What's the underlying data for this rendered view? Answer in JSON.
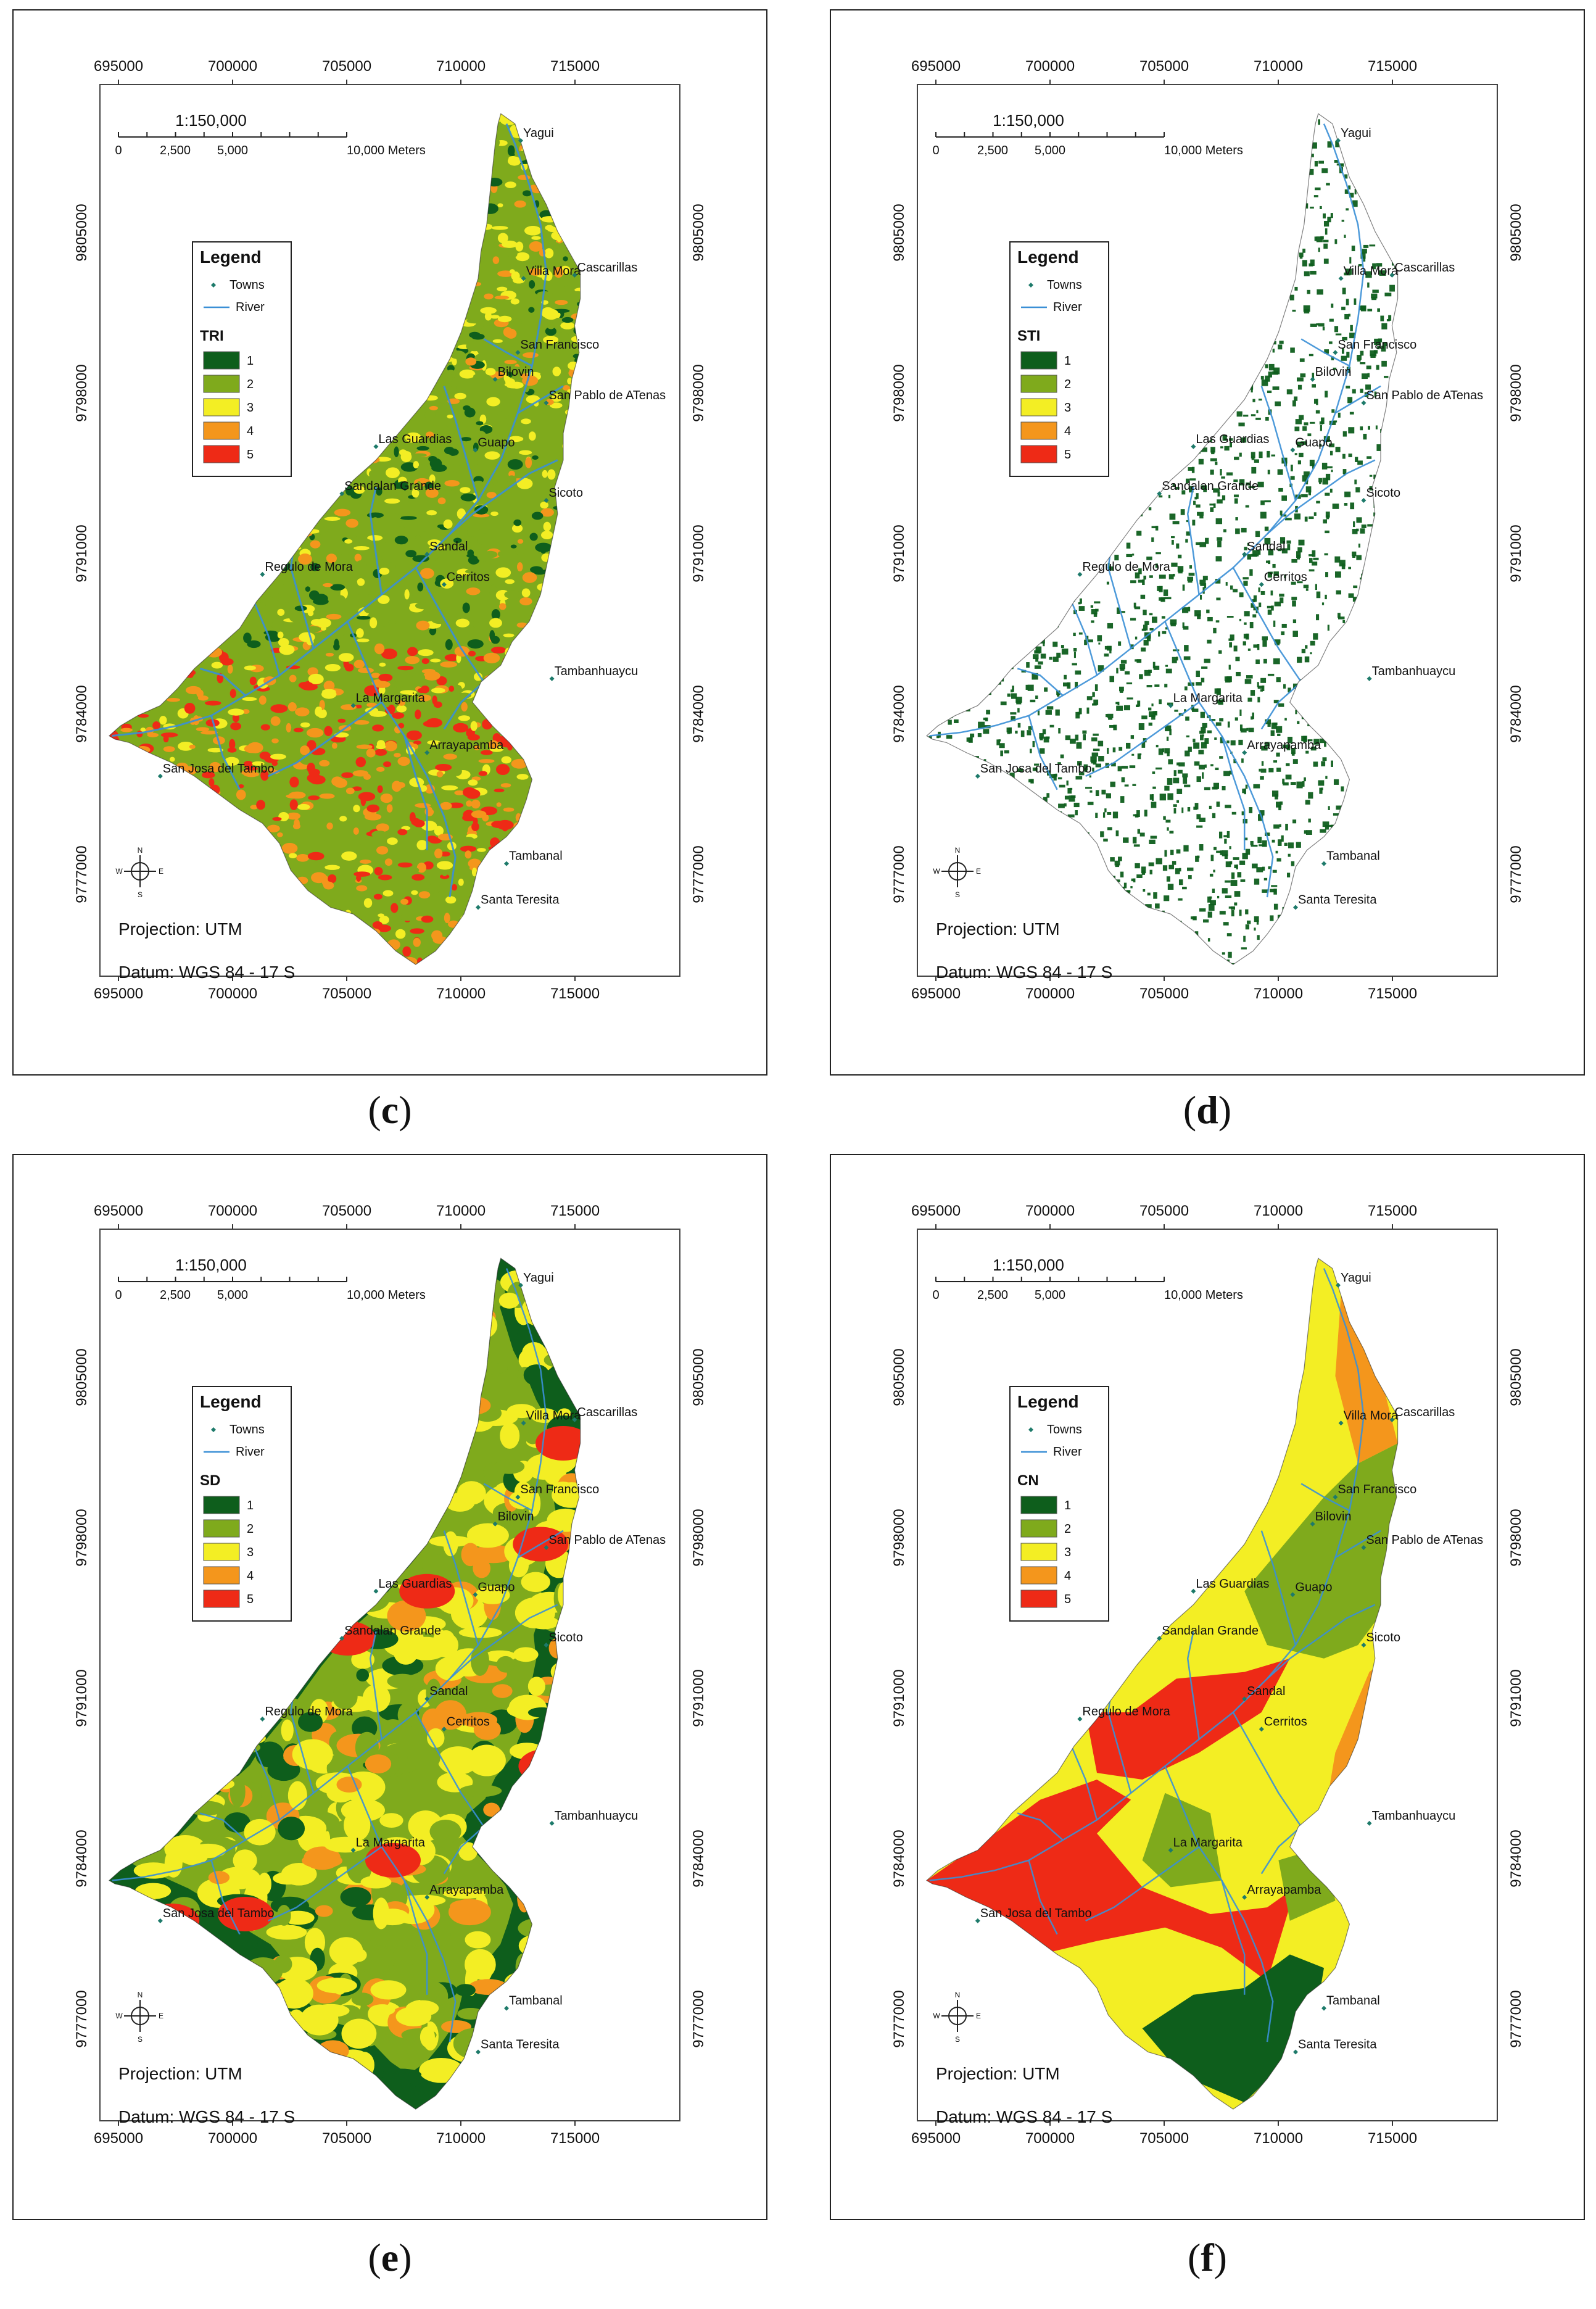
{
  "panels": [
    {
      "id": "c",
      "caption_letter": "c",
      "legend_layer": "TRI",
      "palette": [
        "#0e5e1c",
        "#7faa1c",
        "#f3ee24",
        "#f4961c",
        "#ee2a16"
      ],
      "style": "tri"
    },
    {
      "id": "d",
      "caption_letter": "d",
      "legend_layer": "STI",
      "palette": [
        "#0e5e1c",
        "#7faa1c",
        "#f3ee24",
        "#f4961c",
        "#ee2a16"
      ],
      "style": "sti"
    },
    {
      "id": "e",
      "caption_letter": "e",
      "legend_layer": "SD",
      "palette": [
        "#0e5e1c",
        "#7faa1c",
        "#f3ee24",
        "#f4961c",
        "#ee2a16"
      ],
      "style": "sd"
    },
    {
      "id": "f",
      "caption_letter": "f",
      "legend_layer": "CN",
      "palette": [
        "#0e5e1c",
        "#7faa1c",
        "#f3ee24",
        "#f4961c",
        "#ee2a16"
      ],
      "style": "cn"
    }
  ],
  "map_common": {
    "x_ticks": [
      "695000",
      "700000",
      "705000",
      "710000",
      "715000"
    ],
    "y_ticks": [
      "9805000",
      "9798000",
      "9791000",
      "9784000",
      "9777000"
    ],
    "scale_ratio": "1:150,000",
    "scale_labels": [
      "0",
      "2,500",
      "5,000",
      "10,000 Meters"
    ],
    "legend_title": "Legend",
    "legend_towns": "Towns",
    "legend_river": "River",
    "class_labels": [
      "1",
      "2",
      "3",
      "4",
      "5"
    ],
    "projection": "Projection: UTM",
    "datum": "Datum: WGS 84 - 17 S",
    "north_letters": [
      "N",
      "E",
      "S",
      "W"
    ],
    "river_color": "#3a8fd6",
    "towns": [
      {
        "name": "Yagui"
      },
      {
        "name": "Villa Mora"
      },
      {
        "name": "Cascarillas"
      },
      {
        "name": "San Francisco"
      },
      {
        "name": "Bilovin"
      },
      {
        "name": "San Pablo de ATenas"
      },
      {
        "name": "Las Guardias"
      },
      {
        "name": "Guapo"
      },
      {
        "name": "Sandalan Grande"
      },
      {
        "name": "Sicoto"
      },
      {
        "name": "Sandal"
      },
      {
        "name": "Regulo de Mora"
      },
      {
        "name": "Cerritos"
      },
      {
        "name": "Tambanhuaycu"
      },
      {
        "name": "La Margarita"
      },
      {
        "name": "Arrayapamba"
      },
      {
        "name": "San Josa del Tambo"
      },
      {
        "name": "Tambanal"
      },
      {
        "name": "Santa Teresita"
      }
    ]
  }
}
